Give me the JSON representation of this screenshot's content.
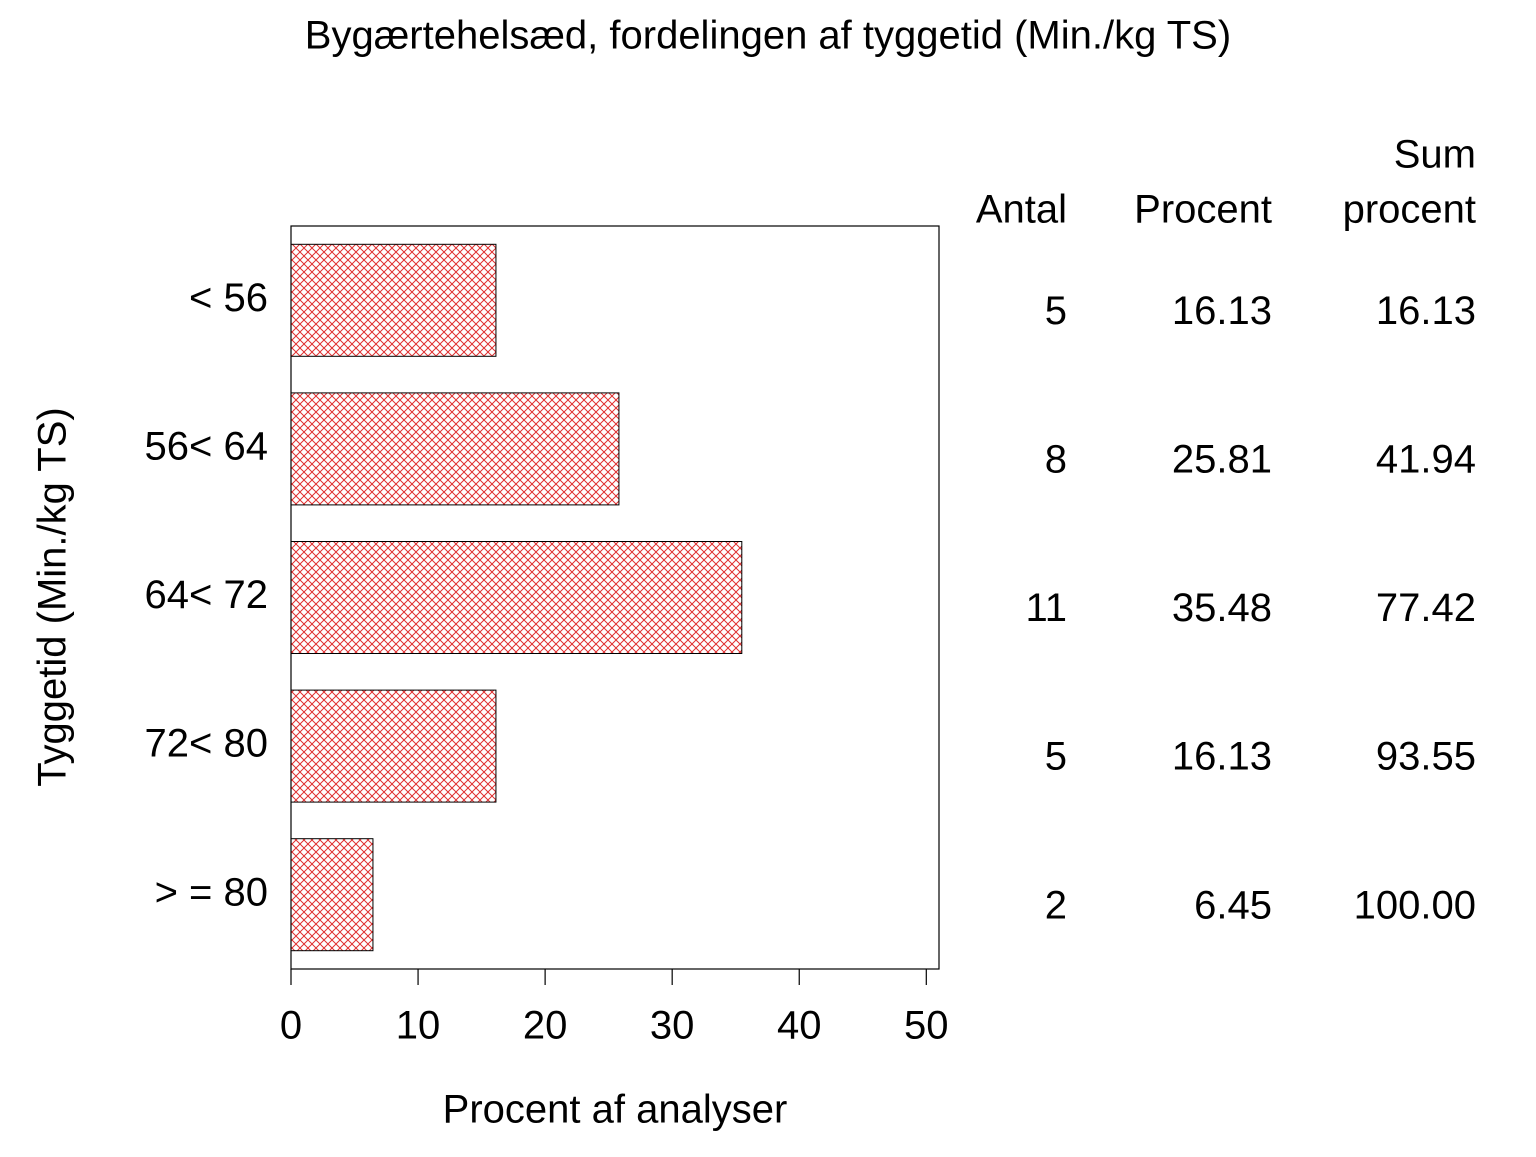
{
  "chart_data": {
    "type": "bar",
    "orientation": "horizontal",
    "title": "Bygærtehelsæd, fordelingen af tyggetid (Min./kg TS)",
    "x_label": "Procent af analyser",
    "y_label": "Tyggetid (Min./kg TS)",
    "categories": [
      "< 56",
      "56< 64",
      "64< 72",
      "72< 80",
      "> = 80"
    ],
    "values": [
      16.13,
      25.81,
      35.48,
      16.13,
      6.45
    ],
    "color": "#e03030",
    "xlim": [
      0,
      51
    ],
    "xticks": [
      0,
      10,
      20,
      30,
      40,
      50
    ],
    "table": {
      "headers": {
        "count": "Antal",
        "percent": "Procent",
        "cumulative": [
          "Sum",
          "procent"
        ]
      },
      "count": [
        5,
        8,
        11,
        5,
        2
      ],
      "cumulative": [
        "16.13",
        "41.94",
        "77.42",
        "93.55",
        "100.00"
      ]
    }
  }
}
